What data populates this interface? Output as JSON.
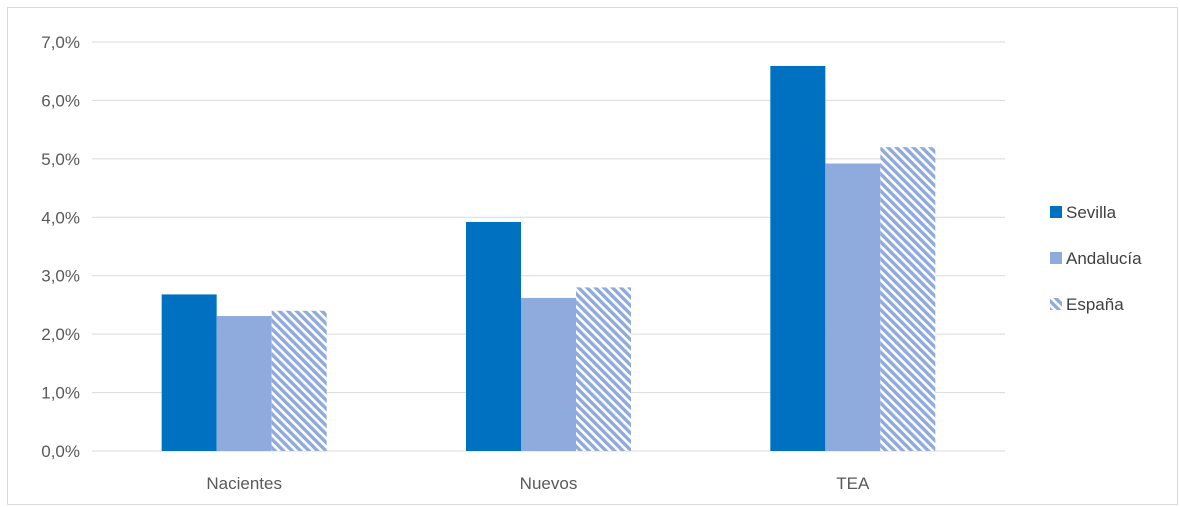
{
  "chart_data": {
    "type": "bar",
    "title": "",
    "xlabel": "",
    "ylabel": "",
    "categories": [
      "Nacientes",
      "Nuevos",
      "TEA"
    ],
    "series": [
      {
        "name": "Sevilla",
        "values": [
          2.68,
          3.92,
          6.59
        ],
        "color": "#0070c0",
        "pattern": "solid"
      },
      {
        "name": "Andalucía",
        "values": [
          2.31,
          2.62,
          4.92
        ],
        "color": "#8faadc",
        "pattern": "solid"
      },
      {
        "name": "España",
        "values": [
          2.4,
          2.8,
          5.2
        ],
        "color": "#8faadc",
        "pattern": "diagonal-hatch"
      }
    ],
    "ylim": [
      0,
      7
    ],
    "yticks": [
      0,
      1,
      2,
      3,
      4,
      5,
      6,
      7
    ],
    "ytick_labels": [
      "0,0%",
      "1,0%",
      "2,0%",
      "3,0%",
      "4,0%",
      "5,0%",
      "6,0%",
      "7,0%"
    ],
    "grid": true,
    "legend_position": "right",
    "gridline_color": "#d9d9d9"
  }
}
